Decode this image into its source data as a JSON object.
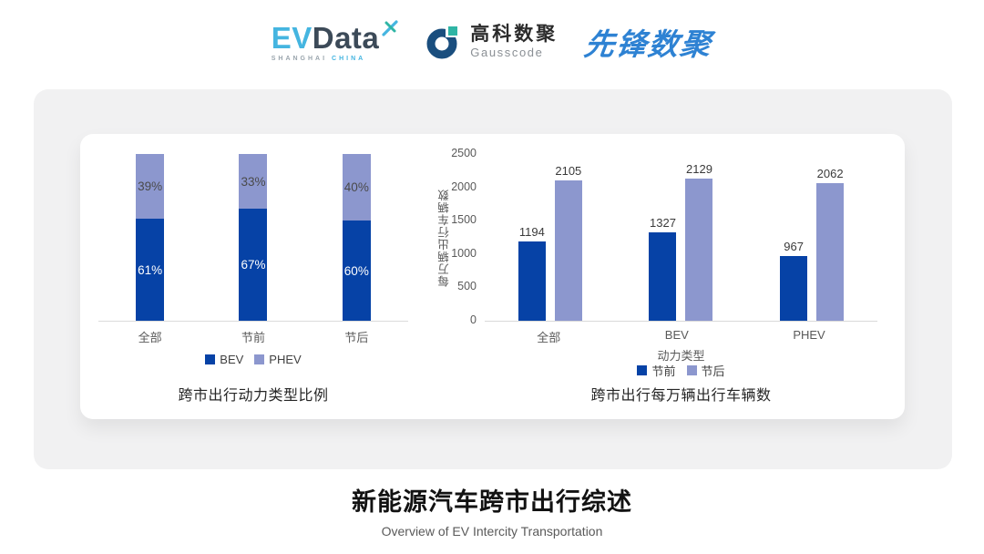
{
  "header": {
    "evdata": {
      "ev": "EV",
      "data": "Data",
      "sub_left": "SHANGHAI",
      "sub_right": "CHINA"
    },
    "gausscode": {
      "cn": "高科数聚",
      "en": "Gausscode"
    },
    "pioneer": "先锋数聚"
  },
  "colors": {
    "dark_blue": "#0642A6",
    "light_blue": "#8C97CE",
    "evdata_blue": "#45B5E0",
    "evdata_slate": "#3C4A58",
    "gausscode_navy": "#1A4E7E",
    "gausscode_teal": "#2FB5A5",
    "pioneer_blue": "#2E82D3",
    "card_gray": "#F1F1F2"
  },
  "chart_data": [
    {
      "type": "bar",
      "variant": "stacked-percent",
      "title": "跨市出行动力类型比例",
      "categories": [
        "全部",
        "节前",
        "节后"
      ],
      "series": [
        {
          "name": "BEV",
          "values": [
            61,
            67,
            60
          ],
          "color": "#0642A6",
          "label_color": "#FFFFFF"
        },
        {
          "name": "PHEV",
          "values": [
            39,
            33,
            40
          ],
          "color": "#8C97CE",
          "label_color": "#4A4A4A"
        }
      ],
      "value_suffix": "%",
      "ylim": [
        0,
        100
      ],
      "grid": false,
      "legend_position": "bottom"
    },
    {
      "type": "bar",
      "variant": "grouped",
      "title": "跨市出行每万辆出行车辆数",
      "categories": [
        "全部",
        "BEV",
        "PHEV"
      ],
      "series": [
        {
          "name": "节前",
          "values": [
            1194,
            1327,
            967
          ],
          "color": "#0642A6"
        },
        {
          "name": "节后",
          "values": [
            2105,
            2129,
            2062
          ],
          "color": "#8C97CE"
        }
      ],
      "xlabel": "动力类型",
      "ylabel": "每万辆出行车辆数",
      "ylim": [
        0,
        2500
      ],
      "yticks": [
        0,
        500,
        1000,
        1500,
        2000,
        2500
      ],
      "grid": false,
      "legend_position": "bottom"
    }
  ],
  "footer": {
    "title": "新能源汽车跨市出行综述",
    "subtitle": "Overview of EV Intercity Transportation"
  }
}
